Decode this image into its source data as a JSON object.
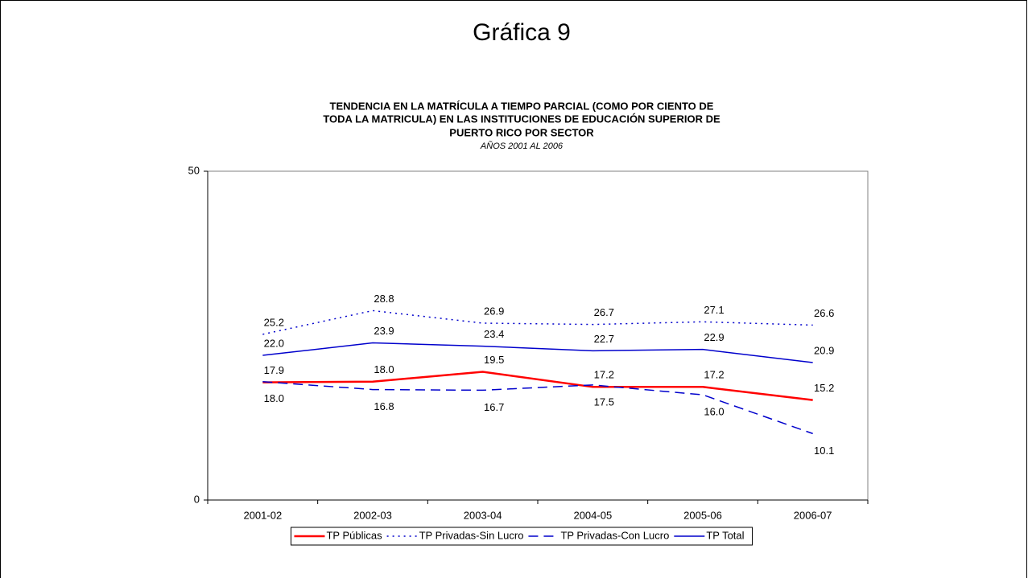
{
  "chart_data": {
    "type": "line",
    "heading": "Gráfica 9",
    "title": [
      "TENDENCIA EN LA MATRÍCULA  A TIEMPO PARCIAL (COMO POR CIENTO DE",
      "TODA LA MATRICULA) EN LAS INSTITUCIONES DE EDUCACIÓN SUPERIOR DE",
      "PUERTO RICO POR SECTOR"
    ],
    "subtitle": "AÑOS 2001 AL 2006",
    "categories": [
      "2001-02",
      "2002-03",
      "2003-04",
      "2004-05",
      "2005-06",
      "2006-07"
    ],
    "series": [
      {
        "name": "TP Públicas",
        "color": "#ff0000",
        "style": "solid",
        "width": 2.5,
        "label_position": "above",
        "values": [
          17.9,
          18.0,
          19.5,
          17.2,
          17.2,
          15.2
        ],
        "value_labels": [
          "17.9",
          "18.0",
          "19.5",
          "17.2",
          "17.2",
          "15.2"
        ]
      },
      {
        "name": "TP Privadas-Sin Lucro",
        "color": "#0000cc",
        "style": "dotted",
        "width": 1.5,
        "label_position": "above",
        "values": [
          25.2,
          28.8,
          26.9,
          26.7,
          27.1,
          26.6
        ],
        "value_labels": [
          "25.2",
          "28.8",
          "26.9",
          "26.7",
          "27.1",
          "26.6"
        ]
      },
      {
        "name": "TP Privadas-Con Lucro",
        "color": "#0000cc",
        "style": "dashed",
        "width": 1.5,
        "label_position": "below",
        "values": [
          18.0,
          16.8,
          16.7,
          17.5,
          16.0,
          10.1
        ],
        "value_labels": [
          "18.0",
          "16.8",
          "16.7",
          "17.5",
          "16.0",
          "10.1"
        ]
      },
      {
        "name": "TP Total",
        "color": "#0000cc",
        "style": "solid",
        "width": 1.5,
        "label_position": "above",
        "values": [
          22.0,
          23.9,
          23.4,
          22.7,
          22.9,
          20.9
        ],
        "value_labels": [
          "22.0",
          "23.9",
          "23.4",
          "22.7",
          "22.9",
          "20.9"
        ]
      }
    ],
    "ylim": [
      0,
      50
    ],
    "yticks": [
      0,
      50
    ],
    "grid": false,
    "legend": "bottom"
  }
}
